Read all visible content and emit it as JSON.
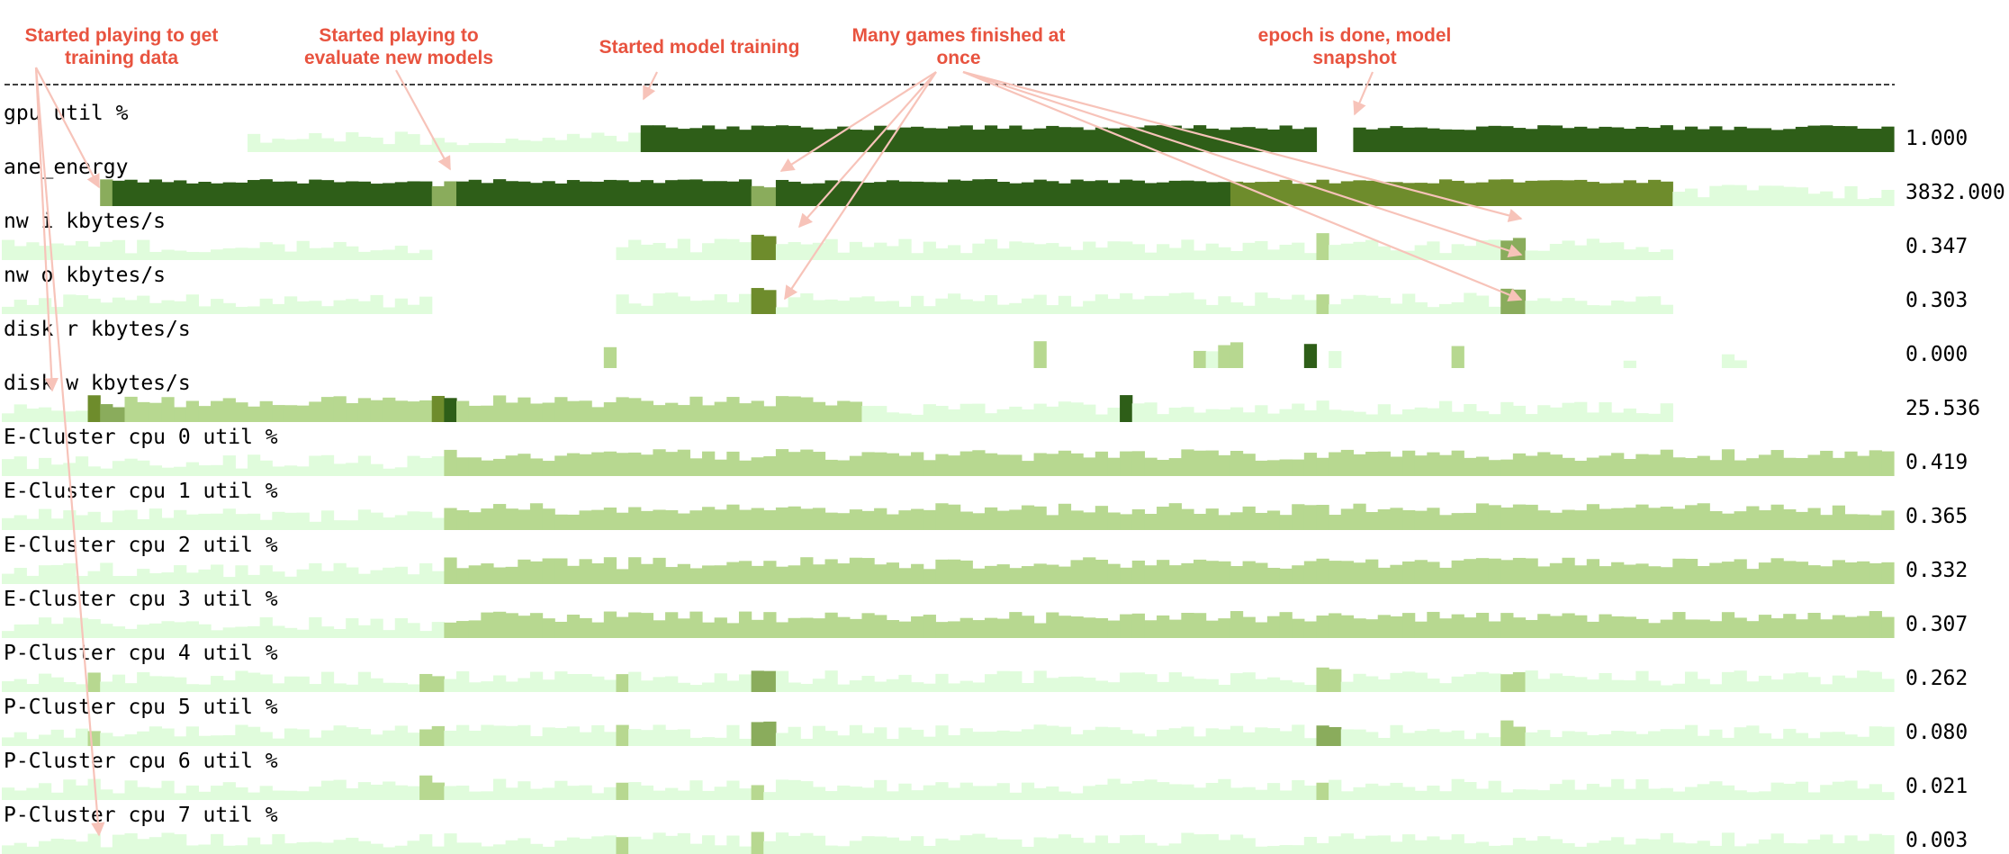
{
  "colors": {
    "band1": "#e0fcdc",
    "band2": "#b7d890",
    "band3": "#8aac5c",
    "band4": "#6e8c2c",
    "band5": "#2e5e18",
    "annotation": "#e8533f",
    "arrow": "#f7c3b9",
    "divider": "#000000"
  },
  "annotations": [
    {
      "lines": [
        "Started playing to get",
        "training data"
      ]
    },
    {
      "lines": [
        "Started playing to",
        "evaluate new models"
      ]
    },
    {
      "lines": [
        "Started model training"
      ]
    },
    {
      "lines": [
        "Many games finished at",
        "once"
      ]
    },
    {
      "lines": [
        "epoch is done, model",
        "snapshot"
      ]
    }
  ],
  "chart_data": {
    "type": "heatmap",
    "x_count": 154,
    "description_of_values": "level per time step: 0 = empty, 1..5 = increasing color intensity",
    "rows": [
      {
        "label": "gpu util %",
        "value": "1.000",
        "segments": [
          [
            0,
            20,
            0
          ],
          [
            20,
            40,
            1
          ],
          [
            40,
            52,
            1
          ],
          [
            52,
            107,
            5
          ],
          [
            107,
            110,
            0
          ],
          [
            110,
            154,
            5
          ]
        ]
      },
      {
        "label": "ane_energy",
        "value": "3832.000",
        "segments": [
          [
            0,
            8,
            0
          ],
          [
            8,
            9,
            3
          ],
          [
            9,
            35,
            5
          ],
          [
            35,
            37,
            3
          ],
          [
            37,
            50,
            5
          ],
          [
            50,
            61,
            5
          ],
          [
            61,
            63,
            3
          ],
          [
            63,
            100,
            5
          ],
          [
            100,
            136,
            4
          ],
          [
            136,
            154,
            1
          ]
        ]
      },
      {
        "label": "nw i kbytes/s",
        "value": "0.347",
        "segments": [
          [
            0,
            5,
            1
          ],
          [
            5,
            35,
            1
          ],
          [
            35,
            50,
            0
          ],
          [
            50,
            51,
            1
          ],
          [
            51,
            61,
            1
          ],
          [
            61,
            63,
            4
          ],
          [
            63,
            107,
            1
          ],
          [
            107,
            108,
            2
          ],
          [
            108,
            122,
            1
          ],
          [
            122,
            124,
            3
          ],
          [
            124,
            136,
            1
          ],
          [
            136,
            154,
            0
          ]
        ]
      },
      {
        "label": "nw o kbytes/s",
        "value": "0.303",
        "segments": [
          [
            0,
            5,
            1
          ],
          [
            5,
            35,
            1
          ],
          [
            35,
            50,
            0
          ],
          [
            50,
            51,
            1
          ],
          [
            51,
            61,
            1
          ],
          [
            61,
            63,
            4
          ],
          [
            63,
            107,
            1
          ],
          [
            107,
            108,
            2
          ],
          [
            108,
            122,
            1
          ],
          [
            122,
            124,
            3
          ],
          [
            124,
            136,
            1
          ],
          [
            136,
            154,
            0
          ]
        ]
      },
      {
        "label": "disk r kbytes/s",
        "value": "0.000",
        "segments": [
          [
            0,
            49,
            0
          ],
          [
            49,
            50,
            2
          ],
          [
            50,
            84,
            0
          ],
          [
            84,
            85,
            2
          ],
          [
            85,
            97,
            0
          ],
          [
            97,
            98,
            2
          ],
          [
            98,
            99,
            1
          ],
          [
            99,
            101,
            2
          ],
          [
            101,
            106,
            0
          ],
          [
            106,
            107,
            5
          ],
          [
            107,
            108,
            0
          ],
          [
            108,
            109,
            1
          ],
          [
            109,
            118,
            0
          ],
          [
            118,
            119,
            2
          ],
          [
            119,
            132,
            0
          ],
          [
            132,
            133,
            1
          ],
          [
            133,
            140,
            0
          ],
          [
            140,
            142,
            1
          ],
          [
            142,
            154,
            0
          ]
        ]
      },
      {
        "label": "disk w kbytes/s",
        "value": "25.536",
        "segments": [
          [
            0,
            7,
            1
          ],
          [
            7,
            8,
            4
          ],
          [
            8,
            10,
            3
          ],
          [
            10,
            35,
            2
          ],
          [
            35,
            36,
            4
          ],
          [
            36,
            37,
            5
          ],
          [
            37,
            70,
            2
          ],
          [
            70,
            91,
            1
          ],
          [
            91,
            92,
            5
          ],
          [
            92,
            136,
            1
          ],
          [
            136,
            154,
            0
          ]
        ]
      },
      {
        "label": "E-Cluster cpu 0 util %",
        "value": "0.419",
        "segments": [
          [
            0,
            36,
            1
          ],
          [
            36,
            154,
            2
          ]
        ]
      },
      {
        "label": "E-Cluster cpu 1 util %",
        "value": "0.365",
        "segments": [
          [
            0,
            36,
            1
          ],
          [
            36,
            154,
            2
          ]
        ]
      },
      {
        "label": "E-Cluster cpu 2 util %",
        "value": "0.332",
        "segments": [
          [
            0,
            36,
            1
          ],
          [
            36,
            154,
            2
          ]
        ]
      },
      {
        "label": "E-Cluster cpu 3 util %",
        "value": "0.307",
        "segments": [
          [
            0,
            36,
            1
          ],
          [
            36,
            154,
            2
          ]
        ]
      },
      {
        "label": "P-Cluster cpu 4 util %",
        "value": "0.262",
        "segments": [
          [
            0,
            7,
            1
          ],
          [
            7,
            8,
            2
          ],
          [
            8,
            34,
            1
          ],
          [
            34,
            36,
            2
          ],
          [
            36,
            50,
            1
          ],
          [
            50,
            51,
            2
          ],
          [
            51,
            61,
            1
          ],
          [
            61,
            63,
            3
          ],
          [
            63,
            107,
            1
          ],
          [
            107,
            109,
            2
          ],
          [
            109,
            122,
            1
          ],
          [
            122,
            124,
            2
          ],
          [
            124,
            154,
            1
          ]
        ]
      },
      {
        "label": "P-Cluster cpu 5 util %",
        "value": "0.080",
        "segments": [
          [
            0,
            7,
            1
          ],
          [
            7,
            8,
            2
          ],
          [
            8,
            34,
            1
          ],
          [
            34,
            36,
            2
          ],
          [
            36,
            50,
            1
          ],
          [
            50,
            51,
            2
          ],
          [
            51,
            61,
            1
          ],
          [
            61,
            63,
            3
          ],
          [
            63,
            107,
            1
          ],
          [
            107,
            109,
            3
          ],
          [
            109,
            122,
            1
          ],
          [
            122,
            124,
            2
          ],
          [
            124,
            154,
            1
          ]
        ]
      },
      {
        "label": "P-Cluster cpu 6 util %",
        "value": "0.021",
        "segments": [
          [
            0,
            7,
            1
          ],
          [
            7,
            34,
            1
          ],
          [
            34,
            36,
            2
          ],
          [
            36,
            50,
            1
          ],
          [
            50,
            51,
            2
          ],
          [
            51,
            61,
            1
          ],
          [
            61,
            62,
            2
          ],
          [
            62,
            107,
            1
          ],
          [
            107,
            108,
            2
          ],
          [
            108,
            154,
            1
          ]
        ]
      },
      {
        "label": "P-Cluster cpu 7 util %",
        "value": "0.003",
        "segments": [
          [
            0,
            7,
            1
          ],
          [
            7,
            50,
            1
          ],
          [
            50,
            51,
            2
          ],
          [
            51,
            61,
            1
          ],
          [
            61,
            62,
            2
          ],
          [
            62,
            154,
            1
          ]
        ]
      }
    ]
  }
}
